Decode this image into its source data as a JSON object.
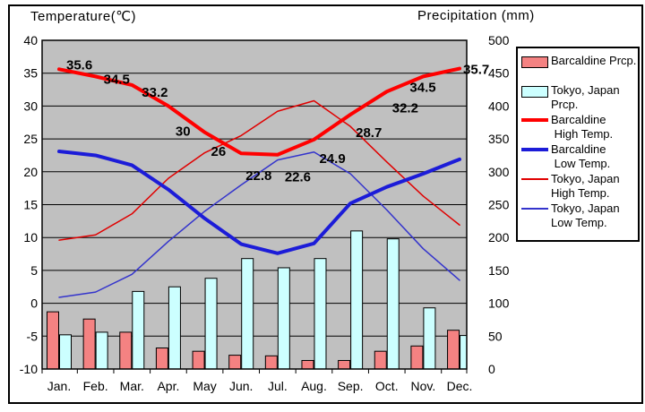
{
  "titles": {
    "left": "Temperature(℃)",
    "right": "Precipitation (mm)"
  },
  "colors": {
    "plot_background": "#C0C0C0",
    "barcaldine_prcp_bar": "#F48282",
    "tokyo_prcp_bar": "#CCFFFF",
    "barcaldine_high_line": "#FF0000",
    "barcaldine_low_line": "#1C1CD8",
    "tokyo_high_line": "#E00000",
    "tokyo_low_line": "#3434CC"
  },
  "chart_data": {
    "type": "combo bar+line climate chart",
    "categories": [
      "Jan.",
      "Feb.",
      "Mar.",
      "Apr.",
      "May",
      "Jun.",
      "Jul.",
      "Aug.",
      "Sep.",
      "Oct.",
      "Nov.",
      "Dec."
    ],
    "temp_axis": {
      "title": "Temperature(℃)",
      "min": -10,
      "max": 40,
      "ticks": [
        40,
        35,
        30,
        25,
        20,
        15,
        10,
        5,
        0,
        -5,
        -10
      ],
      "side": "left",
      "grid": true
    },
    "precip_axis": {
      "title": "Precipitation (mm)",
      "min": 0,
      "max": 500,
      "ticks": [
        500,
        450,
        400,
        350,
        300,
        250,
        200,
        150,
        100,
        50,
        0
      ],
      "side": "right"
    },
    "series": [
      {
        "key": "barcaldine-prcp",
        "name": "Barcaldine Prcp.",
        "type": "bar",
        "axis": "precip",
        "color": "#F48282",
        "values": [
          87,
          76,
          56,
          32,
          27,
          21,
          20,
          13,
          13,
          27,
          35,
          59
        ]
      },
      {
        "key": "tokyo-prcp",
        "name": "Tokyo, Japan Prcp.",
        "type": "bar",
        "axis": "precip",
        "color": "#CCFFFF",
        "values": [
          52,
          56,
          118,
          125,
          138,
          168,
          154,
          168,
          210,
          198,
          93,
          51
        ]
      },
      {
        "key": "tokyo-high-temp",
        "name": "Tokyo, Japan High Temp.",
        "type": "line",
        "axis": "temp",
        "color": "#E00000",
        "stroke_width": 1.5,
        "values": [
          9.6,
          10.4,
          13.6,
          19.0,
          22.9,
          25.5,
          29.2,
          30.8,
          26.9,
          21.5,
          16.3,
          11.9
        ]
      },
      {
        "key": "tokyo-low-temp",
        "name": "Tokyo, Japan Low Temp.",
        "type": "line",
        "axis": "temp",
        "color": "#3434CC",
        "stroke_width": 1.5,
        "values": [
          0.9,
          1.7,
          4.4,
          9.4,
          14.0,
          18.0,
          21.8,
          23.0,
          19.7,
          14.2,
          8.3,
          3.5
        ]
      },
      {
        "key": "barcaldine-low-temp",
        "name": "Barcaldine Low Temp.",
        "type": "line",
        "axis": "temp",
        "color": "#1C1CD8",
        "stroke_width": 4,
        "values": [
          23.1,
          22.5,
          21.0,
          17.3,
          12.9,
          9.0,
          7.6,
          9.1,
          15.2,
          17.7,
          19.7,
          21.9
        ]
      },
      {
        "key": "barcaldine-high-temp",
        "name": "Barcaldine High Temp.",
        "type": "line",
        "axis": "temp",
        "color": "#FF0000",
        "stroke_width": 4,
        "values": [
          35.6,
          34.5,
          33.2,
          30,
          26,
          22.8,
          22.6,
          24.9,
          28.7,
          32.2,
          34.5,
          35.7
        ],
        "point_labels": [
          "35.6",
          "34.5",
          "33.2",
          "30",
          "26",
          "22.8",
          "22.6",
          "24.9",
          "28.7",
          "32.2",
          "34.5",
          "35.7"
        ]
      }
    ]
  },
  "legend": {
    "entries": [
      {
        "swatch": "bar",
        "color": "#F48282",
        "label_lines": [
          "Barcaldine Prcp."
        ]
      },
      {
        "swatch": "bar",
        "color": "#CCFFFF",
        "label_lines": [
          "Tokyo, Japan",
          "Prcp."
        ]
      },
      {
        "swatch": "thick-line",
        "color": "#FF0000",
        "label_lines": [
          "Barcaldine",
          " High Temp."
        ]
      },
      {
        "swatch": "thick-line",
        "color": "#1C1CD8",
        "label_lines": [
          "Barcaldine",
          " Low Temp."
        ]
      },
      {
        "swatch": "thin-line",
        "color": "#E00000",
        "label_lines": [
          "Tokyo, Japan",
          "High Temp."
        ]
      },
      {
        "swatch": "thin-line",
        "color": "#3434CC",
        "label_lines": [
          "Tokyo, Japan",
          "Low Temp."
        ]
      }
    ]
  }
}
